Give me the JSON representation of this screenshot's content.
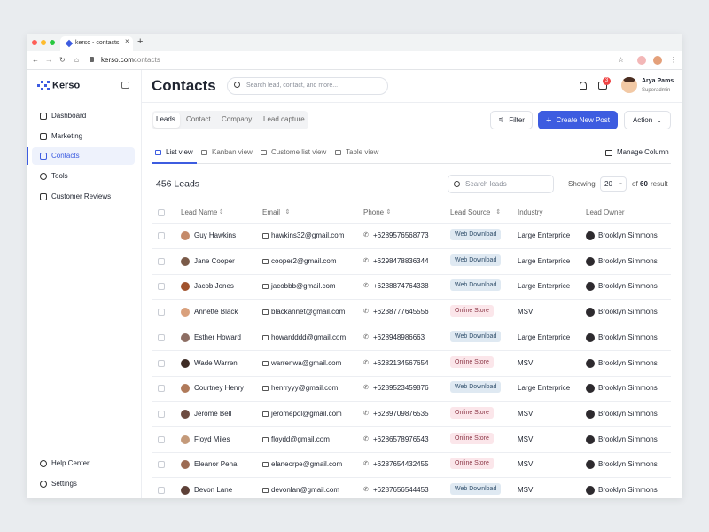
{
  "browser": {
    "tab_title": "kerso - contacts",
    "url_host": "kerso.com",
    "url_path": "contacts"
  },
  "sidebar": {
    "brand": "Kerso",
    "nav": [
      "Dashboard",
      "Marketing",
      "Contacts",
      "Tools",
      "Customer Reviews"
    ],
    "footer": [
      "Help Center",
      "Settings"
    ]
  },
  "header": {
    "title": "Contacts",
    "search_placeholder": "Search lead, contact, and more...",
    "notification_count": 3,
    "user_name": "Arya Pams",
    "user_role": "Superadmin"
  },
  "toolbar": {
    "tabs": [
      "Leads",
      "Contact",
      "Company",
      "Lead capture"
    ],
    "filter": "Filter",
    "create": "Create New Post",
    "action": "Action"
  },
  "views": {
    "items": [
      "List view",
      "Kanban view",
      "Custome list view",
      "Table view"
    ],
    "manage": "Manage Column"
  },
  "leads": {
    "count_label": "456 Leads",
    "search_placeholder": "Search leads",
    "showing": "Showing",
    "page_size": 20,
    "of": "of",
    "total": 60,
    "result": "result"
  },
  "table": {
    "columns": [
      "Lead Name",
      "Email",
      "Phone",
      "Lead Source",
      "Industry",
      "Lead Owner"
    ],
    "rows": [
      [
        "Guy Hawkins",
        "hawkins32@gmail.com",
        "+6289576568773",
        "Web Download",
        "Large Enterprice",
        "Brooklyn Simmons"
      ],
      [
        "Jane Cooper",
        "cooper2@gmail.com",
        "+6298478836344",
        "Web Download",
        "Large Enterprice",
        "Brooklyn Simmons"
      ],
      [
        "Jacob Jones",
        "jacobbb@gmail.com",
        "+6238874764338",
        "Web Download",
        "Large Enterprice",
        "Brooklyn Simmons"
      ],
      [
        "Annette Black",
        "blackannet@gmail.com",
        "+6238777645556",
        "Online Store",
        "MSV",
        "Brooklyn Simmons"
      ],
      [
        "Esther Howard",
        "howardddd@gmail.com",
        "+628948986663",
        "Web Download",
        "Large Enterprice",
        "Brooklyn Simmons"
      ],
      [
        "Wade Warren",
        "warrenwa@gmail.com",
        "+6282134567654",
        "Online Store",
        "MSV",
        "Brooklyn Simmons"
      ],
      [
        "Courtney Henry",
        "henrryyy@gmail.com",
        "+6289523459876",
        "Web Download",
        "Large Enterprice",
        "Brooklyn Simmons"
      ],
      [
        "Jerome Bell",
        "jeromepol@gmail.com",
        "+6289709876535",
        "Online Store",
        "MSV",
        "Brooklyn Simmons"
      ],
      [
        "Floyd Miles",
        "floydd@gmail.com",
        "+6286578976543",
        "Online Store",
        "MSV",
        "Brooklyn Simmons"
      ],
      [
        "Eleanor Pena",
        "elaneorpe@gmail.com",
        "+6287654432455",
        "Online Store",
        "MSV",
        "Brooklyn Simmons"
      ],
      [
        "Devon Lane",
        "devonlan@gmail.com",
        "+6287656544453",
        "Web Download",
        "MSV",
        "Brooklyn Simmons"
      ]
    ]
  }
}
